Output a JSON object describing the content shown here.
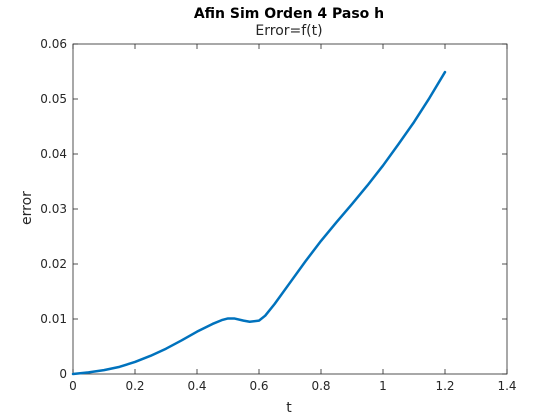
{
  "chart_data": {
    "type": "line",
    "title": "Afin Sim Orden 4 Paso h",
    "subtitle": "Error=f(t)",
    "xlabel": "t",
    "ylabel": "error",
    "xlim": [
      0,
      1.4
    ],
    "ylim": [
      0,
      0.06
    ],
    "xticks": [
      0,
      0.2,
      0.4,
      0.6,
      0.8,
      1,
      1.2,
      1.4
    ],
    "xtick_labels": [
      "0",
      "0.2",
      "0.4",
      "0.6",
      "0.8",
      "1",
      "1.2",
      "1.4"
    ],
    "yticks": [
      0,
      0.01,
      0.02,
      0.03,
      0.04,
      0.05,
      0.06
    ],
    "ytick_labels": [
      "0",
      "0.01",
      "0.02",
      "0.03",
      "0.04",
      "0.05",
      "0.06"
    ],
    "grid": false,
    "series": [
      {
        "color": "#0072bd",
        "x": [
          0,
          0.05,
          0.1,
          0.15,
          0.2,
          0.25,
          0.3,
          0.35,
          0.4,
          0.45,
          0.48,
          0.5,
          0.52,
          0.55,
          0.57,
          0.6,
          0.62,
          0.65,
          0.7,
          0.75,
          0.8,
          0.85,
          0.9,
          0.95,
          1.0,
          1.05,
          1.1,
          1.15,
          1.2
        ],
        "y": [
          0,
          0.0003,
          0.0007,
          0.0013,
          0.0022,
          0.0033,
          0.0046,
          0.0061,
          0.0077,
          0.0091,
          0.0098,
          0.0101,
          0.0101,
          0.0097,
          0.0095,
          0.0097,
          0.0106,
          0.0127,
          0.0166,
          0.0205,
          0.0242,
          0.0276,
          0.0309,
          0.0343,
          0.0379,
          0.0418,
          0.0458,
          0.0502,
          0.0549
        ]
      }
    ]
  }
}
